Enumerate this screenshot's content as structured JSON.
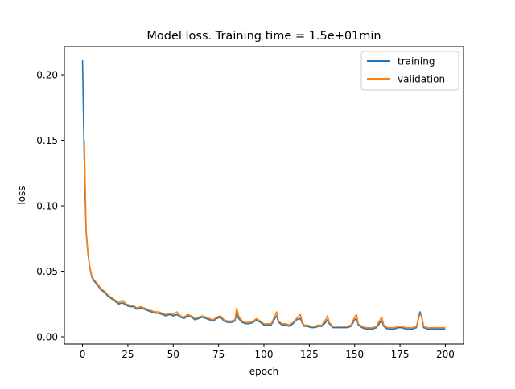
{
  "chart_data": {
    "type": "line",
    "title": "Model loss. Training time = 1.5e+01min",
    "xlabel": "epoch",
    "ylabel": "loss",
    "xlim": [
      -10,
      210
    ],
    "ylim": [
      -0.0055,
      0.2215
    ],
    "x_ticks": [
      0,
      25,
      50,
      75,
      100,
      125,
      150,
      175,
      200
    ],
    "x_tick_labels": [
      "0",
      "25",
      "50",
      "75",
      "100",
      "125",
      "150",
      "175",
      "200"
    ],
    "y_ticks": [
      0.0,
      0.05,
      0.1,
      0.15,
      0.2
    ],
    "y_tick_labels": [
      "0.00",
      "0.05",
      "0.10",
      "0.15",
      "0.20"
    ],
    "grid": false,
    "legend": {
      "position": "upper-right",
      "entries": [
        "training",
        "validation"
      ]
    },
    "series": [
      {
        "name": "training",
        "color": "#1f77b4",
        "x": [
          0,
          1,
          2,
          3,
          4,
          5,
          6,
          8,
          10,
          12,
          14,
          16,
          18,
          20,
          22,
          24,
          26,
          28,
          30,
          32,
          34,
          36,
          38,
          40,
          42,
          44,
          46,
          48,
          50,
          52,
          54,
          56,
          58,
          60,
          62,
          64,
          66,
          68,
          70,
          72,
          74,
          76,
          78,
          80,
          82,
          84,
          85,
          86,
          88,
          90,
          92,
          94,
          96,
          98,
          100,
          102,
          104,
          106,
          107,
          108,
          110,
          112,
          114,
          116,
          118,
          120,
          121,
          122,
          124,
          126,
          128,
          130,
          132,
          134,
          135,
          136,
          138,
          140,
          142,
          144,
          146,
          148,
          150,
          151,
          152,
          154,
          156,
          158,
          160,
          162,
          164,
          165,
          166,
          168,
          170,
          172,
          174,
          176,
          178,
          180,
          182,
          184,
          186,
          187,
          188,
          190,
          192,
          194,
          196,
          198,
          200
        ],
        "values": [
          0.211,
          0.13,
          0.08,
          0.063,
          0.053,
          0.046,
          0.043,
          0.04,
          0.036,
          0.034,
          0.031,
          0.029,
          0.027,
          0.025,
          0.026,
          0.024,
          0.023,
          0.023,
          0.021,
          0.022,
          0.021,
          0.02,
          0.019,
          0.018,
          0.018,
          0.017,
          0.016,
          0.017,
          0.016,
          0.017,
          0.015,
          0.014,
          0.016,
          0.015,
          0.013,
          0.014,
          0.015,
          0.014,
          0.013,
          0.012,
          0.014,
          0.015,
          0.012,
          0.011,
          0.011,
          0.012,
          0.018,
          0.014,
          0.011,
          0.01,
          0.01,
          0.011,
          0.013,
          0.011,
          0.009,
          0.009,
          0.009,
          0.014,
          0.016,
          0.011,
          0.009,
          0.009,
          0.008,
          0.01,
          0.013,
          0.014,
          0.011,
          0.008,
          0.008,
          0.007,
          0.007,
          0.008,
          0.008,
          0.011,
          0.013,
          0.01,
          0.007,
          0.007,
          0.007,
          0.007,
          0.007,
          0.008,
          0.013,
          0.014,
          0.009,
          0.007,
          0.006,
          0.006,
          0.006,
          0.007,
          0.011,
          0.012,
          0.008,
          0.006,
          0.006,
          0.006,
          0.007,
          0.007,
          0.006,
          0.006,
          0.006,
          0.007,
          0.019,
          0.015,
          0.007,
          0.006,
          0.006,
          0.006,
          0.006,
          0.006,
          0.006
        ]
      },
      {
        "name": "validation",
        "color": "#ff7f0e",
        "x": [
          1,
          2,
          3,
          4,
          5,
          6,
          8,
          10,
          12,
          14,
          16,
          18,
          20,
          22,
          24,
          26,
          28,
          30,
          32,
          34,
          36,
          38,
          40,
          42,
          44,
          46,
          48,
          50,
          52,
          54,
          56,
          58,
          60,
          62,
          64,
          66,
          68,
          70,
          72,
          74,
          76,
          78,
          80,
          82,
          84,
          85,
          86,
          88,
          90,
          92,
          94,
          96,
          98,
          100,
          102,
          104,
          106,
          107,
          108,
          110,
          112,
          114,
          116,
          118,
          120,
          121,
          122,
          124,
          126,
          128,
          130,
          132,
          134,
          135,
          136,
          138,
          140,
          142,
          144,
          146,
          148,
          150,
          151,
          152,
          154,
          156,
          158,
          160,
          162,
          164,
          165,
          166,
          168,
          170,
          172,
          174,
          176,
          178,
          180,
          182,
          184,
          186,
          187,
          188,
          190,
          192,
          194,
          196,
          198,
          200
        ],
        "values": [
          0.15,
          0.082,
          0.064,
          0.054,
          0.047,
          0.044,
          0.041,
          0.037,
          0.035,
          0.032,
          0.03,
          0.028,
          0.026,
          0.028,
          0.025,
          0.024,
          0.024,
          0.022,
          0.023,
          0.022,
          0.021,
          0.02,
          0.019,
          0.019,
          0.018,
          0.017,
          0.018,
          0.017,
          0.019,
          0.016,
          0.015,
          0.017,
          0.016,
          0.014,
          0.015,
          0.016,
          0.015,
          0.014,
          0.013,
          0.015,
          0.016,
          0.013,
          0.012,
          0.012,
          0.013,
          0.022,
          0.016,
          0.012,
          0.011,
          0.011,
          0.012,
          0.014,
          0.012,
          0.01,
          0.01,
          0.01,
          0.016,
          0.019,
          0.012,
          0.01,
          0.01,
          0.009,
          0.011,
          0.014,
          0.017,
          0.012,
          0.009,
          0.009,
          0.008,
          0.008,
          0.009,
          0.009,
          0.013,
          0.016,
          0.011,
          0.008,
          0.008,
          0.008,
          0.008,
          0.008,
          0.009,
          0.015,
          0.017,
          0.01,
          0.008,
          0.007,
          0.007,
          0.007,
          0.008,
          0.013,
          0.015,
          0.009,
          0.007,
          0.007,
          0.007,
          0.008,
          0.008,
          0.007,
          0.007,
          0.007,
          0.008,
          0.017,
          0.016,
          0.008,
          0.007,
          0.007,
          0.007,
          0.007,
          0.007,
          0.007
        ]
      }
    ]
  }
}
